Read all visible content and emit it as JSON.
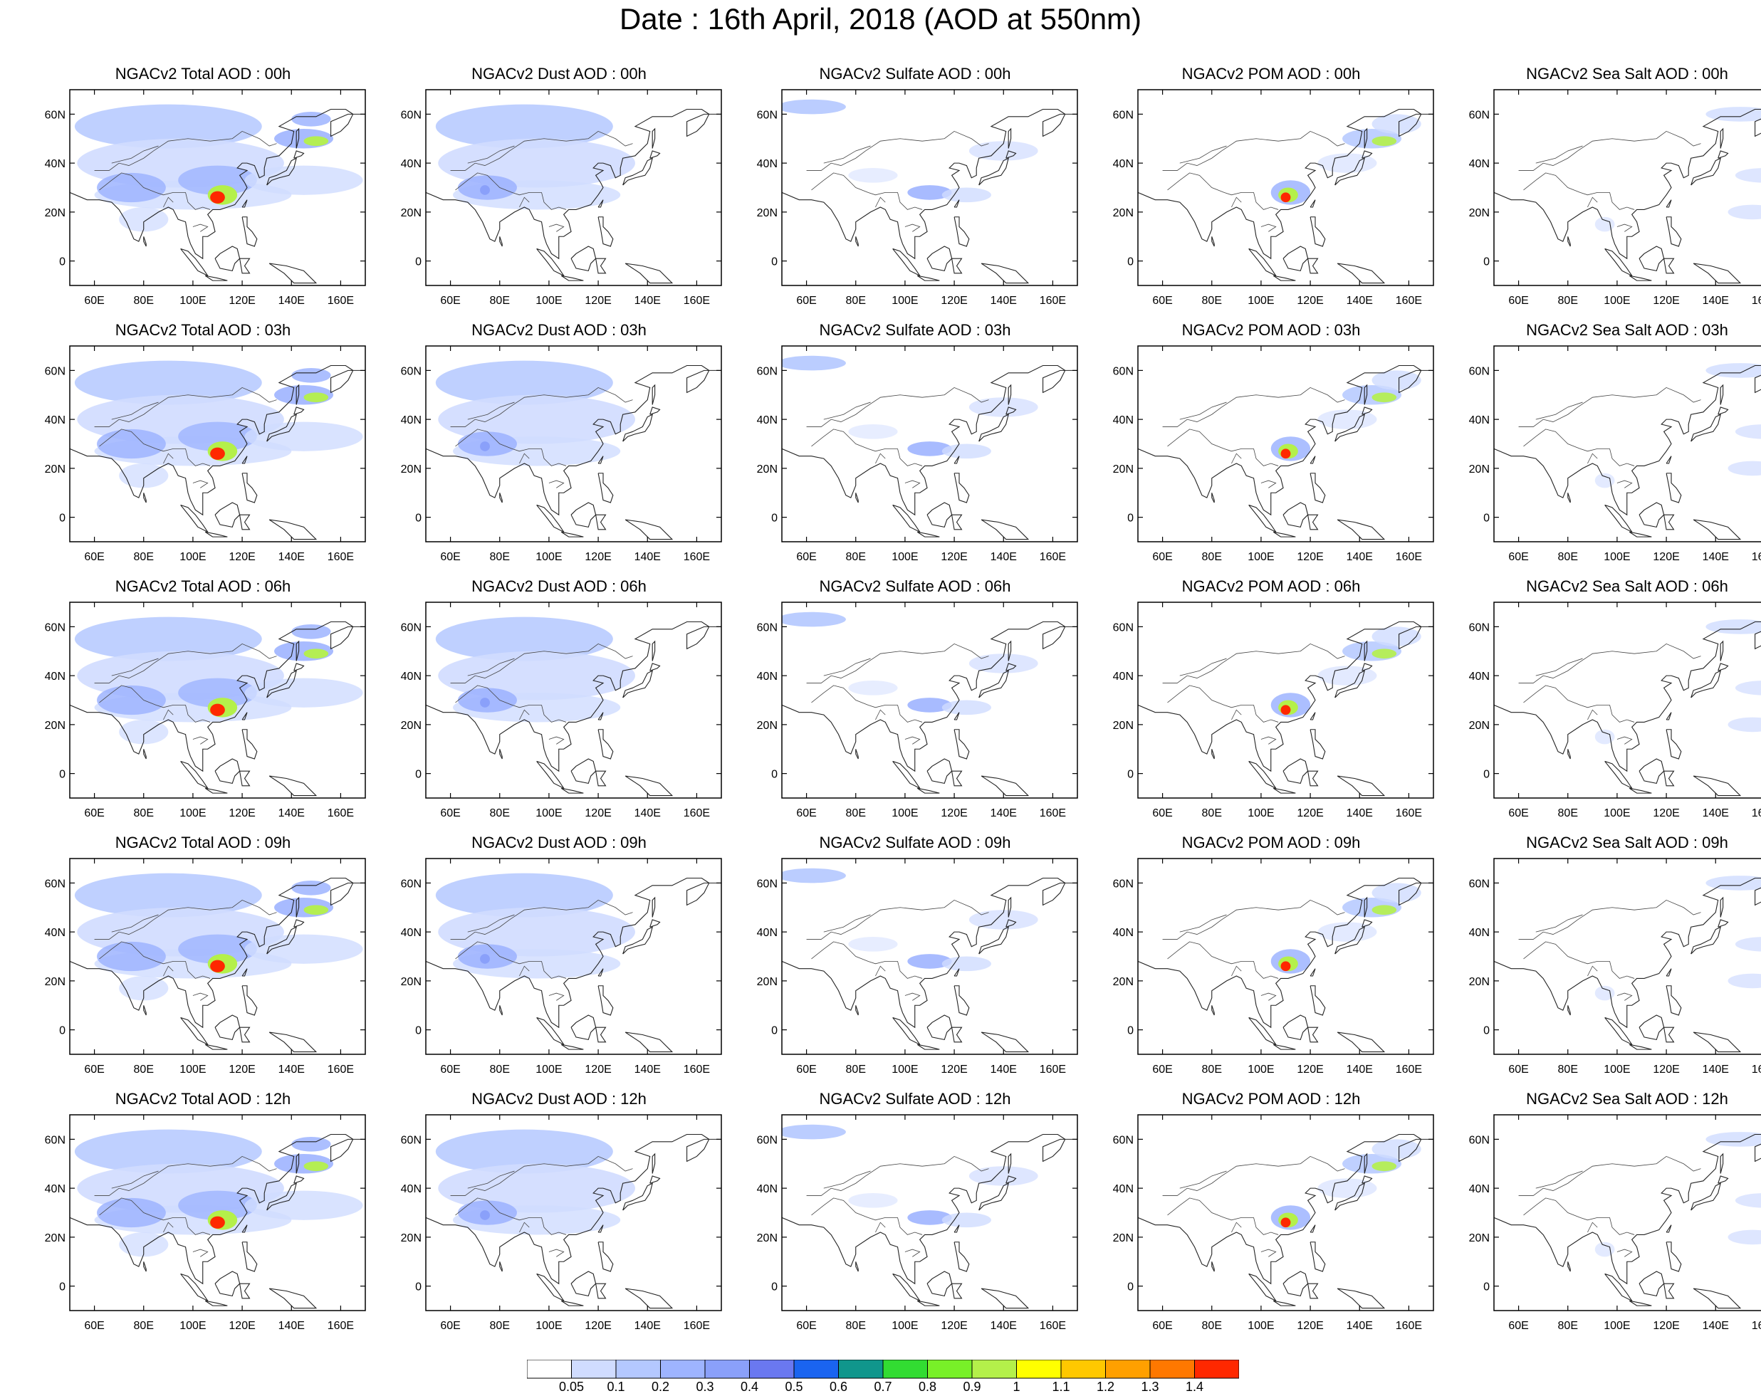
{
  "title": "Date : 16th April, 2018 (AOD at 550nm)",
  "map": {
    "lon_ticks": [
      "60E",
      "80E",
      "100E",
      "120E",
      "140E",
      "160E"
    ],
    "lat_ticks": [
      "60N",
      "40N",
      "20N",
      "0"
    ],
    "lon_values": [
      60,
      80,
      100,
      120,
      140,
      160
    ],
    "lat_values": [
      60,
      40,
      20,
      0
    ],
    "lon_range": [
      50,
      170
    ],
    "lat_range": [
      -10,
      70
    ]
  },
  "panels": [
    [
      "NGACv2 Total AOD : 00h",
      "NGACv2 Dust AOD : 00h",
      "NGACv2 Sulfate AOD : 00h",
      "NGACv2 POM AOD : 00h",
      "NGACv2 Sea Salt AOD : 00h"
    ],
    [
      "NGACv2 Total AOD : 03h",
      "NGACv2 Dust AOD : 03h",
      "NGACv2 Sulfate AOD : 03h",
      "NGACv2 POM AOD : 03h",
      "NGACv2 Sea Salt AOD : 03h"
    ],
    [
      "NGACv2 Total AOD : 06h",
      "NGACv2 Dust AOD : 06h",
      "NGACv2 Sulfate AOD : 06h",
      "NGACv2 POM AOD : 06h",
      "NGACv2 Sea Salt AOD : 06h"
    ],
    [
      "NGACv2 Total AOD : 09h",
      "NGACv2 Dust AOD : 09h",
      "NGACv2 Sulfate AOD : 09h",
      "NGACv2 POM AOD : 09h",
      "NGACv2 Sea Salt  AOD : 09h"
    ],
    [
      "NGACv2 Total AOD  : 12h",
      "NGACv2 Dust AOD : 12h",
      "NGACv2 Sulfate AOD : 12h",
      "NGACv2 POM  AOD : 12h",
      "NGACv2 Sea Salt  AOD : 12h"
    ]
  ],
  "colorbar": {
    "labels": [
      "0.05",
      "0.1",
      "0.2",
      "0.3",
      "0.4",
      "0.5",
      "0.6",
      "0.7",
      "0.8",
      "0.9",
      "1",
      "1.1",
      "1.2",
      "1.3",
      "1.4"
    ],
    "colors": [
      "#ffffff",
      "#d0dcff",
      "#b4c8ff",
      "#9eb4ff",
      "#8aa0fa",
      "#6a78f0",
      "#1a64f0",
      "#10968c",
      "#32dc32",
      "#78f028",
      "#b4f04a",
      "#ffff00",
      "#ffc800",
      "#ffa000",
      "#ff7800",
      "#ff2800"
    ]
  }
}
